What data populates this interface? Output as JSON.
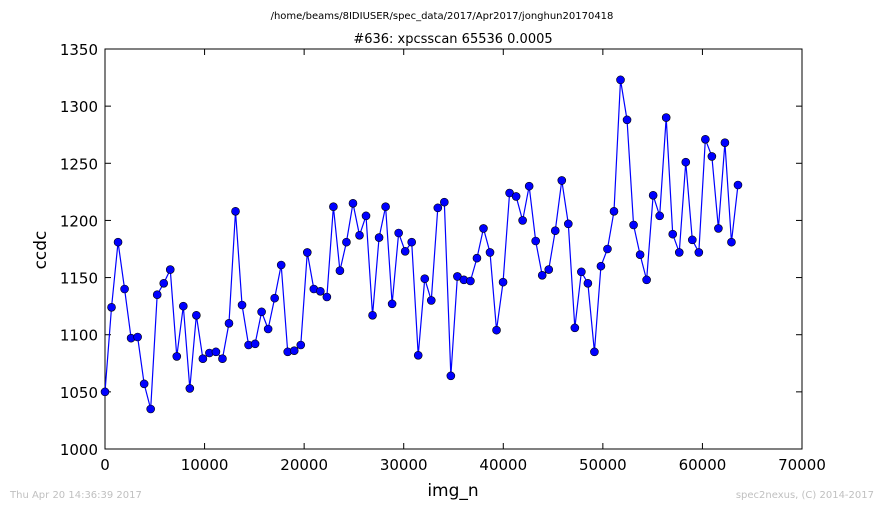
{
  "header": {
    "path": "/home/beams/8IDIUSER/spec_data/2017/Apr2017/jonghun20170418",
    "title": "#636: xpcsscan 65536 0.0005"
  },
  "footer": {
    "timestamp": "Thu Apr 20 14:36:39 2017",
    "credit": "spec2nexus, (C) 2014-2017"
  },
  "chart_data": {
    "type": "line",
    "title": "#636: xpcsscan 65536 0.0005",
    "xlabel": "img_n",
    "ylabel": "ccdc",
    "xlim": [
      0,
      70000
    ],
    "ylim": [
      1000,
      1350
    ],
    "x_ticks": [
      0,
      10000,
      20000,
      30000,
      40000,
      50000,
      60000,
      70000
    ],
    "y_ticks": [
      1000,
      1050,
      1100,
      1150,
      1200,
      1250,
      1300,
      1350
    ],
    "grid": false,
    "marker": "circle",
    "colors": {
      "line": "#0000ff",
      "marker_fill": "#0000ff",
      "marker_edge": "#000000"
    },
    "x_start": 0,
    "x_step": 655.36,
    "values": [
      1050,
      1124,
      1181,
      1140,
      1097,
      1098,
      1057,
      1035,
      1135,
      1145,
      1157,
      1081,
      1125,
      1053,
      1117,
      1079,
      1084,
      1085,
      1079,
      1110,
      1208,
      1126,
      1091,
      1092,
      1120,
      1105,
      1132,
      1161,
      1085,
      1086,
      1091,
      1172,
      1140,
      1138,
      1133,
      1212,
      1156,
      1181,
      1215,
      1187,
      1204,
      1117,
      1185,
      1212,
      1127,
      1189,
      1173,
      1181,
      1082,
      1149,
      1130,
      1211,
      1216,
      1064,
      1151,
      1148,
      1147,
      1167,
      1193,
      1172,
      1104,
      1146,
      1224,
      1221,
      1200,
      1230,
      1182,
      1152,
      1157,
      1191,
      1235,
      1197,
      1106,
      1155,
      1145,
      1085,
      1160,
      1175,
      1208,
      1323,
      1288,
      1196,
      1170,
      1148,
      1222,
      1204,
      1290,
      1188,
      1172,
      1251,
      1183,
      1172,
      1271,
      1256,
      1193,
      1268,
      1181,
      1231
    ]
  }
}
